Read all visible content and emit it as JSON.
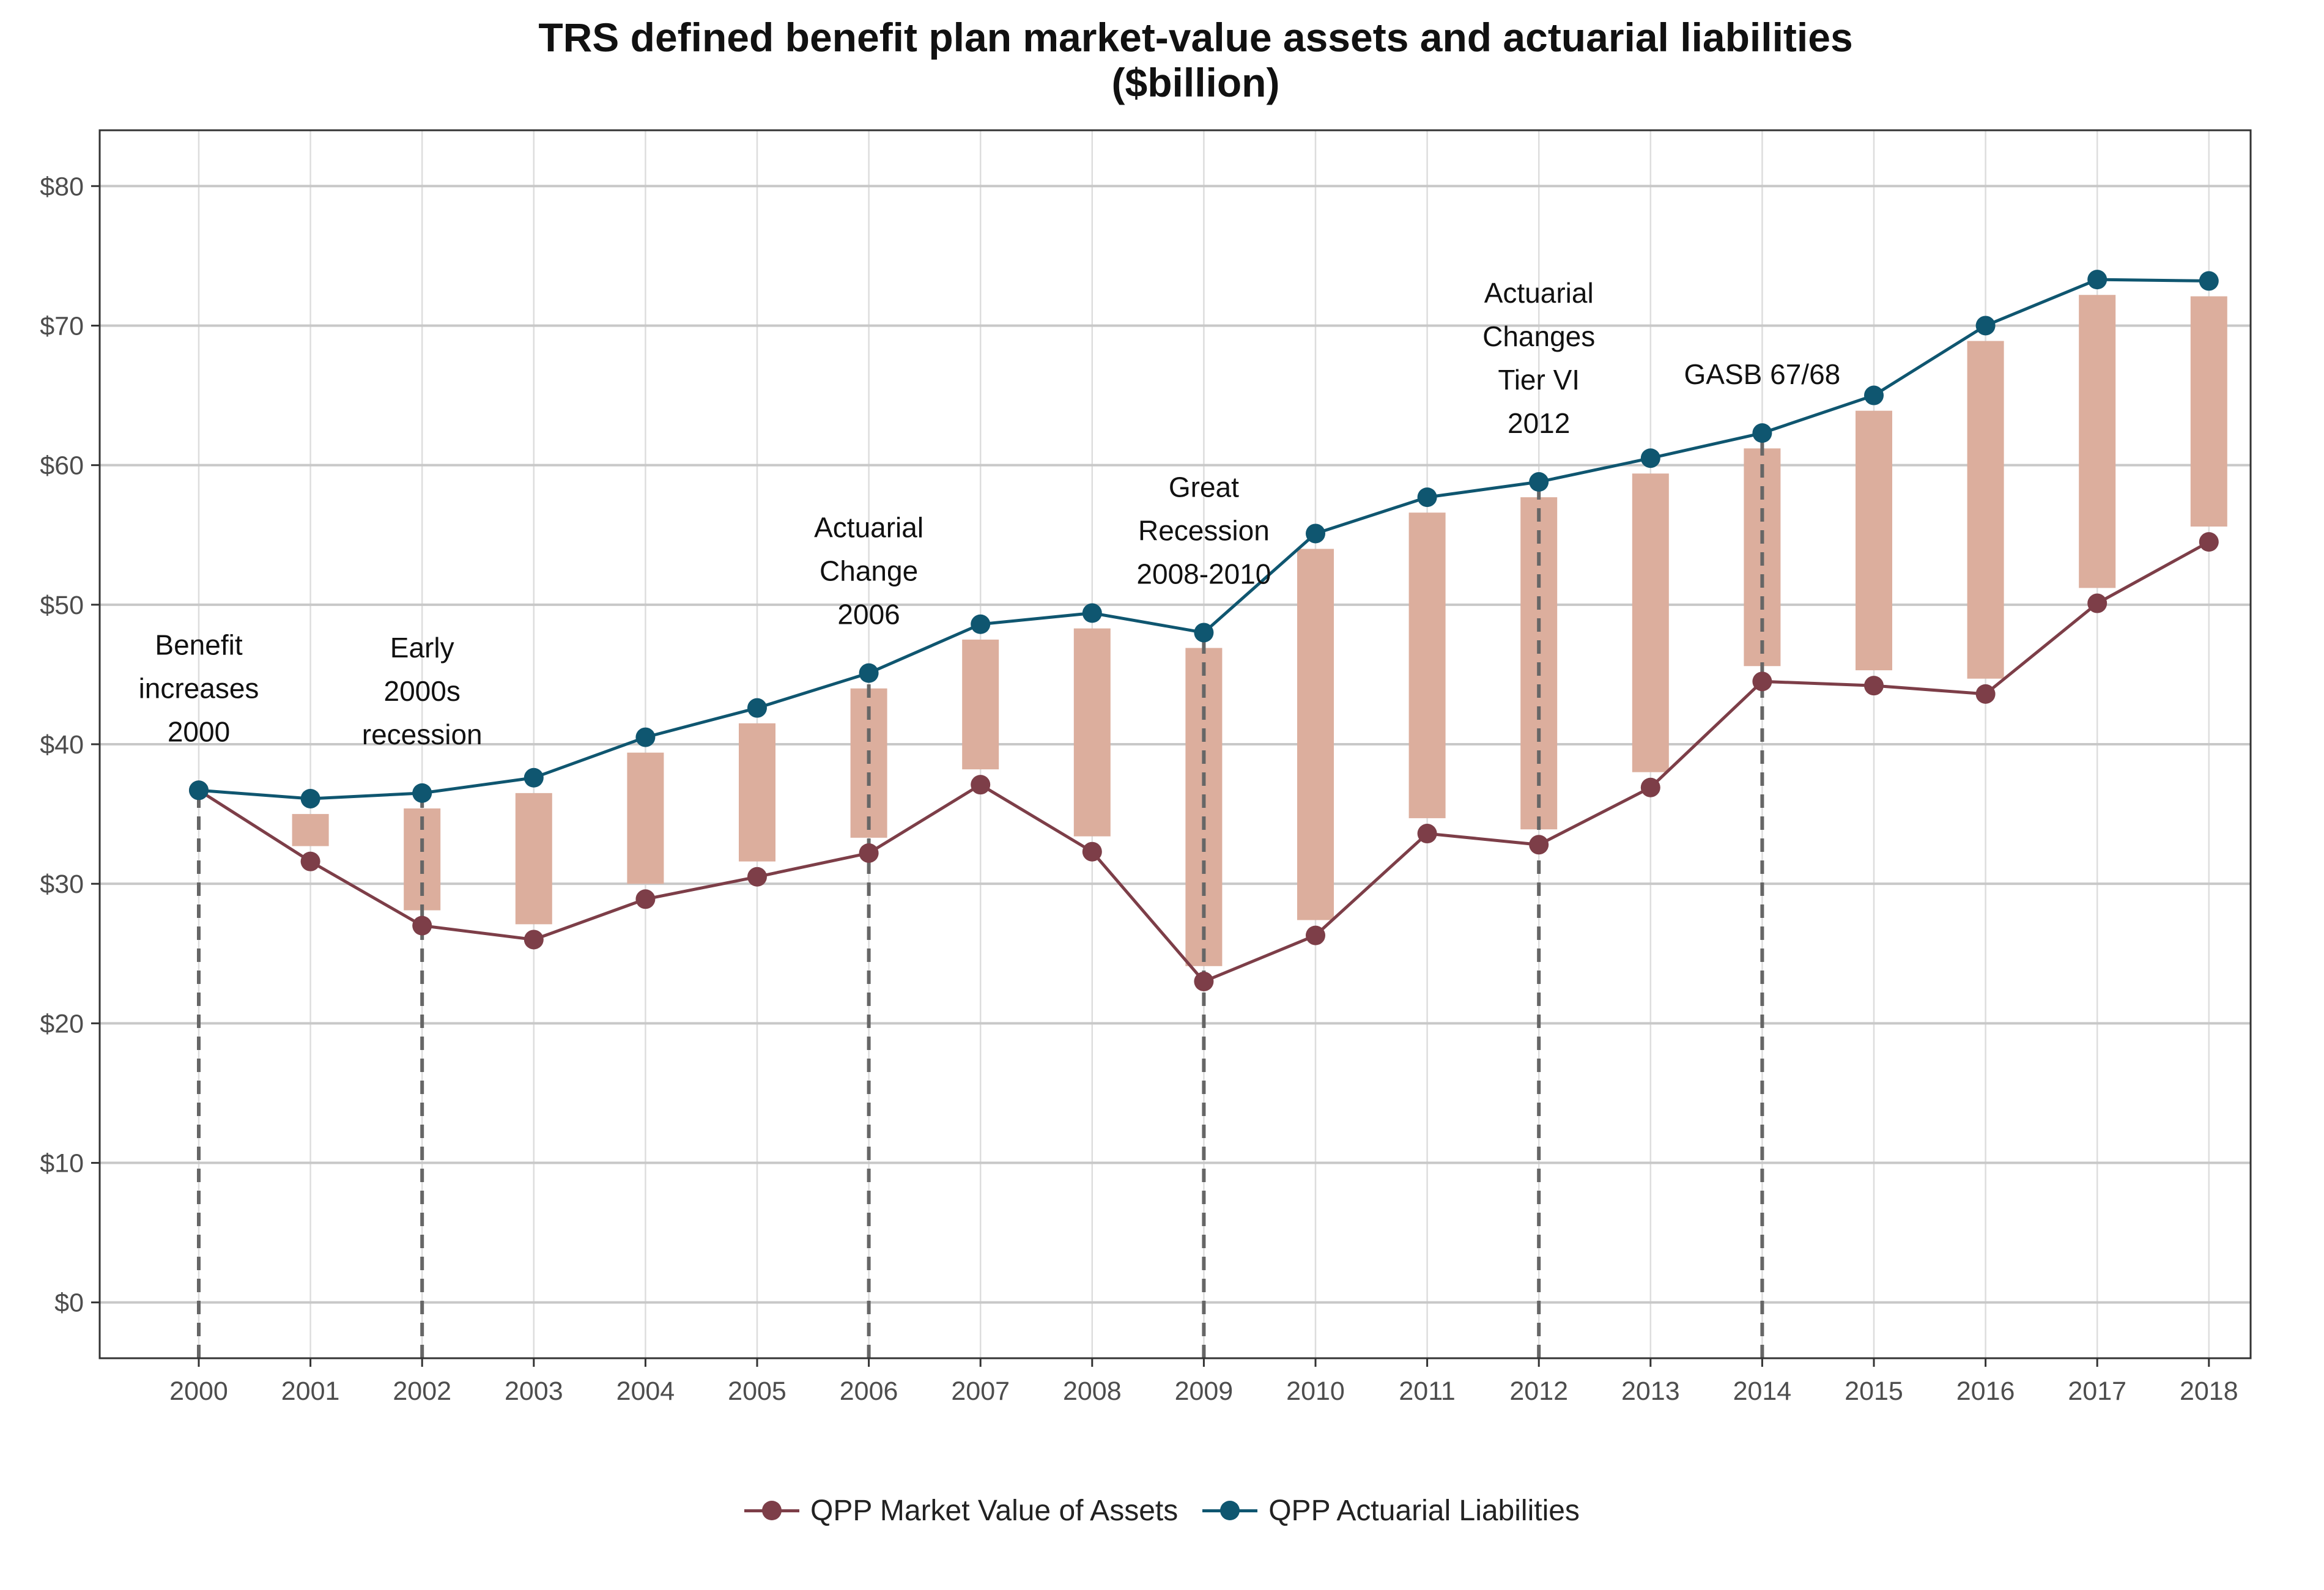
{
  "chart_data": {
    "type": "line",
    "title": "TRS defined benefit plan market-value assets and actuarial liabilities",
    "subtitle": "($billion)",
    "xlabel": "",
    "ylabel": "",
    "categories": [
      "2000",
      "2001",
      "2002",
      "2003",
      "2004",
      "2005",
      "2006",
      "2007",
      "2008",
      "2009",
      "2010",
      "2011",
      "2012",
      "2013",
      "2014",
      "2015",
      "2016",
      "2017",
      "2018"
    ],
    "ylim": [
      -4,
      84
    ],
    "yticks": [
      0,
      10,
      20,
      30,
      40,
      50,
      60,
      70,
      80
    ],
    "ytick_labels": [
      "$0",
      "$10",
      "$20",
      "$30",
      "$40",
      "$50",
      "$60",
      "$70",
      "$80"
    ],
    "grid": true,
    "legend_position": "bottom",
    "series": [
      {
        "name": "QPP Market Value of Assets",
        "color": "#7d3e48",
        "values": [
          36.7,
          31.6,
          27.0,
          26.0,
          28.9,
          30.5,
          32.2,
          37.1,
          32.3,
          23.0,
          26.3,
          33.6,
          32.8,
          36.9,
          44.5,
          44.2,
          43.6,
          50.1,
          54.5
        ]
      },
      {
        "name": "QPP Actuarial Liabilities",
        "color": "#0f5670",
        "values": [
          36.7,
          36.1,
          36.5,
          37.6,
          40.5,
          42.6,
          45.1,
          48.6,
          49.4,
          48.0,
          55.1,
          57.7,
          58.8,
          60.5,
          62.3,
          65.0,
          70.0,
          73.3,
          73.2
        ]
      }
    ],
    "gap_bar_color": "#dcae9d",
    "event_line_color": "#666666",
    "annotations": [
      {
        "year": "2000",
        "lines": [
          "Benefit",
          "increases",
          "2000"
        ]
      },
      {
        "year": "2002",
        "lines": [
          "Early",
          "2000s",
          "recession"
        ]
      },
      {
        "year": "2006",
        "lines": [
          "Actuarial",
          "Change",
          "2006"
        ]
      },
      {
        "year": "2009",
        "lines": [
          "Great",
          "Recession",
          "2008-2010"
        ]
      },
      {
        "year": "2012",
        "lines": [
          "Actuarial",
          "Changes",
          "Tier VI",
          "2012"
        ]
      },
      {
        "year": "2014",
        "lines": [
          "GASB 67/68"
        ]
      }
    ]
  }
}
